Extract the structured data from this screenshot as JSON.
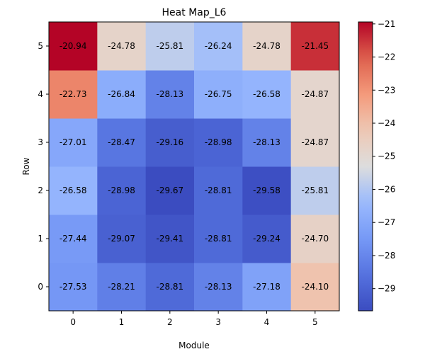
{
  "chart_data": {
    "type": "heatmap",
    "title": "Heat Map_L6",
    "xlabel": "Module",
    "ylabel": "Row",
    "x_categories": [
      "0",
      "1",
      "2",
      "3",
      "4",
      "5"
    ],
    "y_categories": [
      "0",
      "1",
      "2",
      "3",
      "4",
      "5"
    ],
    "values": [
      [
        -27.53,
        -28.21,
        -28.81,
        -28.13,
        -27.18,
        -24.1
      ],
      [
        -27.44,
        -29.07,
        -29.41,
        -28.81,
        -29.24,
        -24.7
      ],
      [
        -26.58,
        -28.98,
        -29.67,
        -28.81,
        -29.58,
        -25.81
      ],
      [
        -27.01,
        -28.47,
        -29.16,
        -28.98,
        -28.13,
        -24.87
      ],
      [
        -22.73,
        -26.84,
        -28.13,
        -26.75,
        -26.58,
        -24.87
      ],
      [
        -20.94,
        -24.78,
        -25.81,
        -26.24,
        -24.78,
        -21.45
      ]
    ],
    "value_labels": [
      [
        "-27.53",
        "-28.21",
        "-28.81",
        "-28.13",
        "-27.18",
        "-24.10"
      ],
      [
        "-27.44",
        "-29.07",
        "-29.41",
        "-28.81",
        "-29.24",
        "-24.70"
      ],
      [
        "-26.58",
        "-28.98",
        "-29.67",
        "-28.81",
        "-29.58",
        "-25.81"
      ],
      [
        "-27.01",
        "-28.47",
        "-29.16",
        "-28.98",
        "-28.13",
        "-24.87"
      ],
      [
        "-22.73",
        "-26.84",
        "-28.13",
        "-26.75",
        "-26.58",
        "-24.87"
      ],
      [
        "-20.94",
        "-24.78",
        "-25.81",
        "-26.24",
        "-24.78",
        "-21.45"
      ]
    ],
    "colormap": "coolwarm",
    "vmin": -29.67,
    "vmax": -20.94,
    "colorbar_ticks": [
      -21,
      -22,
      -23,
      -24,
      -25,
      -26,
      -27,
      -28,
      -29
    ],
    "colorbar_tick_labels": [
      "−21",
      "−22",
      "−23",
      "−24",
      "−25",
      "−26",
      "−27",
      "−28",
      "−29"
    ],
    "grid": false
  }
}
